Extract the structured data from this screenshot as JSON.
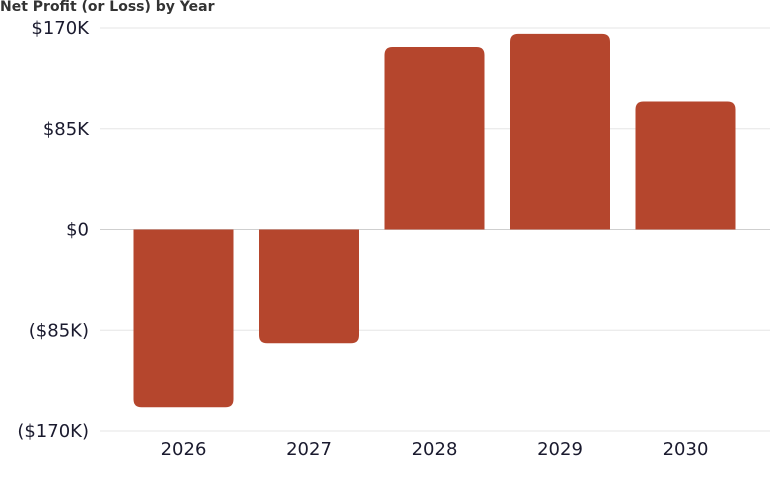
{
  "chart_data": {
    "type": "bar",
    "title": "Net Profit (or Loss) by Year",
    "categories": [
      "2026",
      "2027",
      "2028",
      "2029",
      "2030"
    ],
    "values": [
      -150000,
      -96000,
      154000,
      165000,
      108000
    ],
    "ylim": [
      -170000,
      170000
    ],
    "yticks": [
      170000,
      85000,
      0,
      -85000,
      -170000
    ],
    "ytick_labels": [
      "$170K",
      "$85K",
      "$0",
      "($85K)",
      "($170K)"
    ],
    "grid": true,
    "bar_color": "#b5462d",
    "grid_color": "#e6e6e6"
  }
}
